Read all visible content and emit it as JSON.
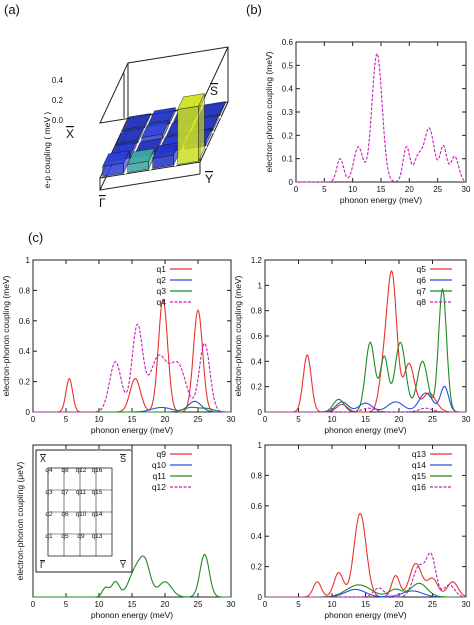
{
  "panel_labels": {
    "a": "(a)",
    "b": "(b)",
    "c": "(c)"
  },
  "panel_a": {
    "zlabel": "e-p coupling  ( meV )",
    "zticks": [
      "0.4",
      "0.2",
      "0.0"
    ],
    "corner_labels": {
      "X": "X",
      "S": "S",
      "G": "Γ",
      "Y": "Y"
    },
    "bars": [
      {
        "grid": [
          0,
          0
        ],
        "value": 0.1,
        "color": "#2b3fd6"
      },
      {
        "grid": [
          1,
          0
        ],
        "value": 0.08,
        "color": "#3aa6a0"
      },
      {
        "grid": [
          2,
          0
        ],
        "value": 0.1,
        "color": "#2233c8"
      },
      {
        "grid": [
          3,
          0
        ],
        "value": 0.55,
        "color": "#cfe21f"
      },
      {
        "grid": [
          0,
          1
        ],
        "value": 0.04,
        "color": "#2233c8"
      },
      {
        "grid": [
          1,
          1
        ],
        "value": 0.03,
        "color": "#1f2fb8"
      },
      {
        "grid": [
          2,
          1
        ],
        "value": 0.04,
        "color": "#2233c8"
      },
      {
        "grid": [
          3,
          1
        ],
        "value": 0.05,
        "color": "#1f2fb8"
      },
      {
        "grid": [
          0,
          2
        ],
        "value": 0.03,
        "color": "#1f2fb8"
      },
      {
        "grid": [
          1,
          2
        ],
        "value": 0.05,
        "color": "#2b3fd6"
      },
      {
        "grid": [
          2,
          2
        ],
        "value": 0.03,
        "color": "#1f2fb8"
      },
      {
        "grid": [
          3,
          2
        ],
        "value": 0.03,
        "color": "#1f2fb8"
      },
      {
        "grid": [
          0,
          3
        ],
        "value": 0.02,
        "color": "#1f2fb8"
      },
      {
        "grid": [
          1,
          3
        ],
        "value": 0.04,
        "color": "#2233c8"
      },
      {
        "grid": [
          2,
          3
        ],
        "value": 0.02,
        "color": "#1f2fb8"
      },
      {
        "grid": [
          3,
          3
        ],
        "value": 0.02,
        "color": "#1f2fb8"
      }
    ]
  },
  "inset": {
    "ylabel": "electron-phonon coupling (μeV)",
    "cells": [
      [
        "q4",
        "q8",
        "q12",
        "q16"
      ],
      [
        "q3",
        "q7",
        "q11",
        "q15"
      ],
      [
        "q2",
        "q6",
        "q10",
        "q14"
      ],
      [
        "q1",
        "q5",
        "q9",
        "q13"
      ]
    ],
    "corners": {
      "X": "X",
      "S": "S",
      "G": "Γ",
      "Y": "Y"
    }
  },
  "chart_data": [
    {
      "id": "b",
      "type": "line",
      "xlabel": "phonon energy (meV)",
      "ylabel": "electron-phonon coupling (meV)",
      "xlim": [
        0,
        30
      ],
      "ylim": [
        0,
        0.6
      ],
      "xticks": [
        0,
        5,
        10,
        15,
        20,
        25,
        30
      ],
      "yticks": [
        0,
        0.1,
        0.2,
        0.3,
        0.4,
        0.5,
        0.6
      ],
      "series": [
        {
          "color": "#c81fb4",
          "dash": true,
          "peaks": [
            [
              7.8,
              0.1,
              0.6
            ],
            [
              11.0,
              0.15,
              0.8
            ],
            [
              14.3,
              0.55,
              0.9
            ],
            [
              19.5,
              0.15,
              0.6
            ],
            [
              21.5,
              0.1,
              0.7
            ],
            [
              23.5,
              0.23,
              0.9
            ],
            [
              26.0,
              0.15,
              0.6
            ],
            [
              28.0,
              0.11,
              0.7
            ]
          ]
        }
      ]
    },
    {
      "id": "c1",
      "type": "line",
      "xlabel": "phonon energy (meV)",
      "ylabel": "electron-phonon coupling (meV)",
      "xlim": [
        0,
        30
      ],
      "ylim": [
        0,
        1.0
      ],
      "xticks": [
        0,
        5,
        10,
        15,
        20,
        25,
        30
      ],
      "yticks": [
        0,
        0.2,
        0.4,
        0.6,
        0.8,
        1
      ],
      "series": [
        {
          "name": "q1",
          "color": "#e8322c",
          "dash": false,
          "peaks": [
            [
              5.5,
              0.22,
              0.5
            ],
            [
              15.5,
              0.22,
              0.8
            ],
            [
              19.7,
              0.74,
              0.7
            ],
            [
              25.0,
              0.67,
              0.7
            ]
          ]
        },
        {
          "name": "q2",
          "color": "#2a50e0",
          "dash": false,
          "peaks": [
            [
              19.5,
              0.03,
              1.5
            ],
            [
              24.5,
              0.07,
              1.0
            ]
          ]
        },
        {
          "name": "q3",
          "color": "#1f8a24",
          "dash": false,
          "peaks": [
            [
              24.0,
              0.03,
              1.2
            ],
            [
              26.5,
              0.02,
              1.0
            ]
          ]
        },
        {
          "name": "q4",
          "color": "#c81fb4",
          "dash": true,
          "peaks": [
            [
              12.5,
              0.33,
              0.9
            ],
            [
              15.8,
              0.56,
              0.8
            ],
            [
              19.0,
              0.36,
              1.3
            ],
            [
              22.0,
              0.3,
              1.2
            ],
            [
              26.0,
              0.45,
              0.8
            ]
          ]
        }
      ]
    },
    {
      "id": "c2",
      "type": "line",
      "xlabel": "phonon energy (meV)",
      "ylabel": "electron-phonon coupling (meV)",
      "xlim": [
        0,
        30
      ],
      "ylim": [
        0,
        1.2
      ],
      "xticks": [
        0,
        5,
        10,
        15,
        20,
        25,
        30
      ],
      "yticks": [
        0,
        0.2,
        0.4,
        0.6,
        0.8,
        1,
        1.2
      ],
      "series": [
        {
          "name": "q5",
          "color": "#e8322c",
          "dash": false,
          "peaks": [
            [
              6.3,
              0.45,
              0.6
            ],
            [
              11.5,
              0.06,
              0.8
            ],
            [
              17.8,
              0.35,
              0.7
            ],
            [
              19.0,
              1.02,
              0.7
            ],
            [
              21.5,
              0.38,
              0.8
            ],
            [
              24.5,
              0.15,
              1.0
            ]
          ]
        },
        {
          "name": "q6",
          "color": "#2a50e0",
          "dash": false,
          "peaks": [
            [
              11.5,
              0.08,
              0.9
            ],
            [
              15.0,
              0.07,
              1.0
            ],
            [
              19.5,
              0.08,
              1.2
            ],
            [
              24.0,
              0.15,
              1.0
            ],
            [
              26.8,
              0.2,
              0.6
            ]
          ]
        },
        {
          "name": "q7",
          "color": "#1f8a24",
          "dash": false,
          "peaks": [
            [
              11.0,
              0.1,
              0.8
            ],
            [
              15.7,
              0.55,
              0.7
            ],
            [
              17.8,
              0.43,
              0.6
            ],
            [
              20.2,
              0.55,
              0.8
            ],
            [
              23.5,
              0.4,
              0.8
            ],
            [
              26.5,
              0.97,
              0.6
            ]
          ]
        },
        {
          "name": "q8",
          "color": "#c81fb4",
          "dash": true,
          "peaks": [
            [
              15.5,
              0.03,
              1.0
            ],
            [
              24.0,
              0.03,
              1.0
            ]
          ]
        }
      ]
    },
    {
      "id": "c3",
      "type": "line",
      "xlabel": "phonon energy (meV)",
      "ylabel": "electron-phonon coupling (μeV)",
      "xlim": [
        0,
        30
      ],
      "ylim": [
        0,
        1.0
      ],
      "xticks": [
        0,
        5,
        10,
        15,
        20,
        25,
        30
      ],
      "yticks": [],
      "series": [
        {
          "name": "q9",
          "color": "#e8322c",
          "dash": false,
          "peaks": []
        },
        {
          "name": "q10",
          "color": "#2a50e0",
          "dash": false,
          "peaks": []
        },
        {
          "name": "q11",
          "color": "#1f8a24",
          "dash": false,
          "peaks": [
            [
              11.0,
              0.06,
              0.5
            ],
            [
              12.5,
              0.1,
              0.6
            ],
            [
              15.5,
              0.17,
              1.0
            ],
            [
              17.0,
              0.2,
              0.8
            ],
            [
              20.0,
              0.1,
              1.0
            ],
            [
              26.0,
              0.28,
              0.7
            ]
          ]
        },
        {
          "name": "q12",
          "color": "#c81fb4",
          "dash": true,
          "peaks": []
        }
      ]
    },
    {
      "id": "c4",
      "type": "line",
      "xlabel": "phonon energy (meV)",
      "ylabel": "",
      "xlim": [
        0,
        30
      ],
      "ylim": [
        0,
        1.0
      ],
      "xticks": [
        0,
        5,
        10,
        15,
        20,
        25,
        30
      ],
      "yticks": [
        0,
        0.2,
        0.4,
        0.6,
        0.8,
        1
      ],
      "series": [
        {
          "name": "q13",
          "color": "#e8322c",
          "dash": false,
          "peaks": [
            [
              7.8,
              0.1,
              0.6
            ],
            [
              11.0,
              0.16,
              0.7
            ],
            [
              14.2,
              0.55,
              0.9
            ],
            [
              19.5,
              0.14,
              0.6
            ],
            [
              22.5,
              0.22,
              0.9
            ],
            [
              25.0,
              0.12,
              0.8
            ],
            [
              28.0,
              0.1,
              0.8
            ]
          ]
        },
        {
          "name": "q14",
          "color": "#2a50e0",
          "dash": false,
          "peaks": [
            [
              13.5,
              0.05,
              1.5
            ],
            [
              22.0,
              0.04,
              1.5
            ]
          ]
        },
        {
          "name": "q15",
          "color": "#1f8a24",
          "dash": false,
          "peaks": [
            [
              14.0,
              0.08,
              1.8
            ],
            [
              19.5,
              0.05,
              1.0
            ],
            [
              23.0,
              0.09,
              1.2
            ]
          ]
        },
        {
          "name": "q16",
          "color": "#c81fb4",
          "dash": true,
          "peaks": [
            [
              17.0,
              0.06,
              0.8
            ],
            [
              23.0,
              0.2,
              0.9
            ],
            [
              24.8,
              0.26,
              0.7
            ],
            [
              27.5,
              0.08,
              0.8
            ]
          ]
        }
      ]
    }
  ]
}
